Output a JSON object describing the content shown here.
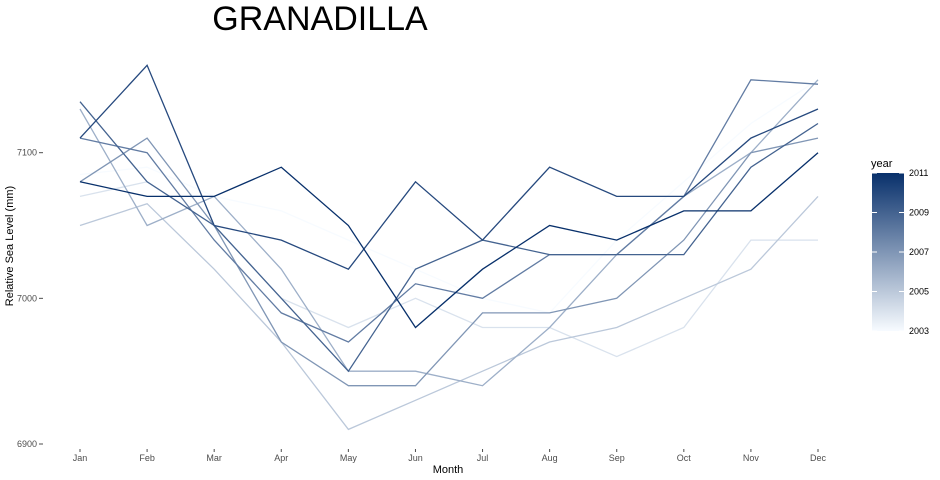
{
  "chart_data": {
    "type": "line",
    "title": "GRANADILLA",
    "xlabel": "Month",
    "ylabel": "Relative Sea Level (mm)",
    "categories": [
      "Jan",
      "Feb",
      "Mar",
      "Apr",
      "May",
      "Jun",
      "Jul",
      "Aug",
      "Sep",
      "Oct",
      "Nov",
      "Dec"
    ],
    "ylim": [
      6900,
      7165
    ],
    "yticks": [
      6900,
      7000,
      7100
    ],
    "grid": false,
    "legend": {
      "title": "year",
      "placement": "right",
      "type": "colorbar",
      "ticks": [
        2003,
        2005,
        2007,
        2009,
        2011
      ],
      "range": [
        2003,
        2011
      ],
      "color_low": "#f7fbff",
      "color_high": "#08306b"
    },
    "series": [
      {
        "year": 2003,
        "values": [
          7085,
          7090,
          7070,
          7060,
          7040,
          7020,
          7000,
          6990,
          7040,
          7080,
          7120,
          7150
        ]
      },
      {
        "year": 2004,
        "values": [
          7070,
          7080,
          7050,
          7000,
          6980,
          7000,
          6980,
          6980,
          6960,
          6980,
          7040,
          7040
        ]
      },
      {
        "year": 2005,
        "values": [
          7050,
          7065,
          7020,
          6970,
          6910,
          6930,
          6950,
          6970,
          6980,
          7000,
          7020,
          7070
        ]
      },
      {
        "year": 2006,
        "values": [
          7130,
          7050,
          7070,
          7020,
          6950,
          6950,
          6940,
          6980,
          7030,
          7070,
          7100,
          7150
        ]
      },
      {
        "year": 2007,
        "values": [
          7080,
          7110,
          7050,
          6970,
          6940,
          6940,
          6990,
          6990,
          7000,
          7040,
          7100,
          7110
        ]
      },
      {
        "year": 2008,
        "values": [
          7110,
          7100,
          7040,
          6990,
          6970,
          7010,
          7000,
          7030,
          7030,
          7070,
          7150,
          7147
        ]
      },
      {
        "year": 2009,
        "values": [
          7135,
          7080,
          7050,
          7000,
          6950,
          7020,
          7040,
          7030,
          7030,
          7030,
          7090,
          7120
        ]
      },
      {
        "year": 2010,
        "values": [
          7110,
          7160,
          7050,
          7040,
          7020,
          7080,
          7040,
          7090,
          7070,
          7070,
          7110,
          7130
        ]
      },
      {
        "year": 2011,
        "values": [
          7080,
          7070,
          7070,
          7090,
          7050,
          6980,
          7020,
          7050,
          7040,
          7060,
          7060,
          7100
        ]
      }
    ]
  }
}
